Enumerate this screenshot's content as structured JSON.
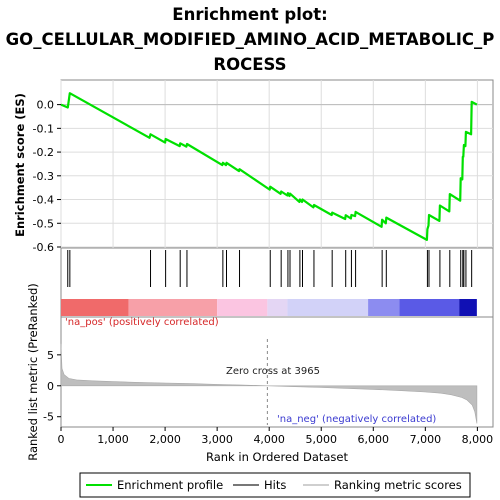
{
  "chart_data": {
    "type": "line",
    "title_lines": [
      "Enrichment plot:",
      "GO_CELLULAR_MODIFIED_AMINO_ACID_METABOLIC_P",
      "ROCESS"
    ],
    "ylabel_top": "Enrichment score (ES)",
    "ylabel_bottom": "Ranked list metric (PreRanked)",
    "xlabel": "Rank in Ordered Dataset",
    "xlim": [
      0,
      8300
    ],
    "es_ylim": [
      -0.6,
      0.07
    ],
    "metric_ylim": [
      -6.5,
      9.5
    ],
    "x_ticks": [
      0,
      1000,
      2000,
      3000,
      4000,
      5000,
      6000,
      7000,
      8000
    ],
    "x_tick_labels": [
      "0",
      "1,000",
      "2,000",
      "3,000",
      "4,000",
      "5,000",
      "6,000",
      "7,000",
      "8,000"
    ],
    "es_ticks": [
      0.0,
      -0.1,
      -0.2,
      -0.3,
      -0.4,
      -0.5,
      -0.6
    ],
    "es_tick_labels": [
      "0.0",
      "-0.1",
      "-0.2",
      "-0.3",
      "-0.4",
      "-0.5",
      "-0.6"
    ],
    "metric_ticks": [
      5,
      0,
      -5
    ],
    "metric_tick_labels": [
      "5",
      "0",
      "-5"
    ],
    "hits": [
      130,
      170,
      1720,
      2010,
      2290,
      2420,
      3110,
      3180,
      3430,
      4020,
      4230,
      4360,
      4400,
      4590,
      4640,
      4860,
      5210,
      5470,
      5580,
      5660,
      6170,
      6250,
      7040,
      7070,
      7280,
      7470,
      7680,
      7720,
      7740,
      7780,
      7890
    ],
    "es_curve": [
      [
        0,
        0.0
      ],
      [
        130,
        -0.012
      ],
      [
        170,
        0.048
      ],
      [
        1700,
        -0.14
      ],
      [
        1720,
        -0.125
      ],
      [
        2000,
        -0.16
      ],
      [
        2010,
        -0.145
      ],
      [
        2280,
        -0.175
      ],
      [
        2290,
        -0.163
      ],
      [
        2410,
        -0.177
      ],
      [
        2420,
        -0.166
      ],
      [
        3100,
        -0.255
      ],
      [
        3110,
        -0.245
      ],
      [
        3170,
        -0.255
      ],
      [
        3180,
        -0.245
      ],
      [
        3420,
        -0.28
      ],
      [
        3430,
        -0.272
      ],
      [
        4010,
        -0.358
      ],
      [
        4020,
        -0.346
      ],
      [
        4220,
        -0.376
      ],
      [
        4230,
        -0.366
      ],
      [
        4350,
        -0.383
      ],
      [
        4360,
        -0.373
      ],
      [
        4390,
        -0.385
      ],
      [
        4400,
        -0.375
      ],
      [
        4580,
        -0.41
      ],
      [
        4590,
        -0.4
      ],
      [
        4630,
        -0.41
      ],
      [
        4640,
        -0.4
      ],
      [
        4850,
        -0.433
      ],
      [
        4860,
        -0.423
      ],
      [
        5200,
        -0.465
      ],
      [
        5210,
        -0.455
      ],
      [
        5460,
        -0.482
      ],
      [
        5470,
        -0.466
      ],
      [
        5570,
        -0.48
      ],
      [
        5580,
        -0.465
      ],
      [
        5650,
        -0.47
      ],
      [
        5660,
        -0.452
      ],
      [
        6160,
        -0.515
      ],
      [
        6170,
        -0.485
      ],
      [
        6240,
        -0.5
      ],
      [
        6250,
        -0.476
      ],
      [
        7030,
        -0.57
      ],
      [
        7040,
        -0.525
      ],
      [
        7060,
        -0.51
      ],
      [
        7070,
        -0.465
      ],
      [
        7270,
        -0.49
      ],
      [
        7280,
        -0.425
      ],
      [
        7460,
        -0.45
      ],
      [
        7470,
        -0.377
      ],
      [
        7670,
        -0.405
      ],
      [
        7680,
        -0.31
      ],
      [
        7710,
        -0.315
      ],
      [
        7720,
        -0.22
      ],
      [
        7730,
        -0.22
      ],
      [
        7740,
        -0.17
      ],
      [
        7770,
        -0.175
      ],
      [
        7780,
        -0.115
      ],
      [
        7880,
        -0.125
      ],
      [
        7890,
        0.012
      ],
      [
        7990,
        0.0
      ]
    ],
    "zero_cross_label": "Zero cross at 3965",
    "zero_cross_rank": 3965,
    "pos_label": "'na_pos' (positively correlated)",
    "neg_label": "'na_neg' (negatively correlated)",
    "metric_profile": [
      [
        0,
        6.8
      ],
      [
        20,
        2.8
      ],
      [
        60,
        1.8
      ],
      [
        150,
        1.2
      ],
      [
        300,
        0.95
      ],
      [
        600,
        0.8
      ],
      [
        1000,
        0.68
      ],
      [
        1500,
        0.55
      ],
      [
        2000,
        0.45
      ],
      [
        2500,
        0.35
      ],
      [
        3000,
        0.23
      ],
      [
        3500,
        0.12
      ],
      [
        3965,
        0.0
      ],
      [
        4500,
        -0.15
      ],
      [
        5000,
        -0.28
      ],
      [
        5500,
        -0.42
      ],
      [
        6000,
        -0.58
      ],
      [
        6500,
        -0.78
      ],
      [
        7000,
        -1.0
      ],
      [
        7300,
        -1.2
      ],
      [
        7500,
        -1.45
      ],
      [
        7700,
        -1.9
      ],
      [
        7800,
        -2.3
      ],
      [
        7900,
        -3.1
      ],
      [
        7950,
        -4.2
      ],
      [
        7990,
        -6.1
      ]
    ],
    "legend": [
      "Enrichment profile",
      "Hits",
      "Ranking metric scores"
    ],
    "colors": {
      "es_line": "#00e000",
      "hits": "#000000",
      "metric_fill": "#bebebe",
      "pos_strong": "#f06a6a",
      "pos_mid": "#f7a0a8",
      "pos_light": "#fbc5e1",
      "neg_light": "#d2d2f8",
      "neg_mid": "#8c8cf0",
      "neg_dark": "#5a5ae6",
      "neg_strong": "#1010b4"
    }
  }
}
